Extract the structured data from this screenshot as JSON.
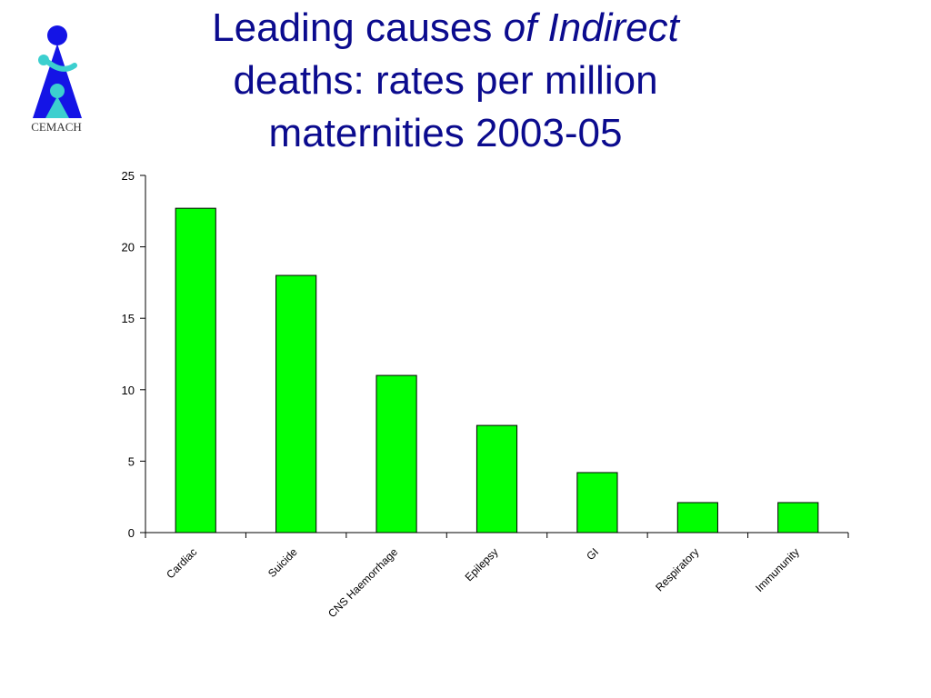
{
  "title": {
    "line1_normal": "Leading causes ",
    "line1_italic": "of Indirect",
    "line2": "deaths: rates per million",
    "line3": "maternities 2003-05"
  },
  "logo": {
    "text": "CEMACH",
    "colors": {
      "figure": "#1414e6",
      "accent": "#3ccfcf",
      "text": "#333333"
    }
  },
  "colors": {
    "title": "#0b0b8e",
    "bar_fill": "#00ff00",
    "bar_stroke": "#000000"
  },
  "chart_data": {
    "type": "bar",
    "title": "",
    "xlabel": "",
    "ylabel": "",
    "categories": [
      "Cardiac",
      "Suicide",
      "CNS Haemorrhage",
      "Epilepsy",
      "GI",
      "Respiratory",
      "Immununity"
    ],
    "values": [
      22.7,
      18.0,
      11.0,
      7.5,
      4.2,
      2.1,
      2.1
    ],
    "ylim": [
      0,
      25
    ],
    "yticks": [
      0,
      5,
      10,
      15,
      20,
      25
    ],
    "grid": false,
    "legend": "none"
  }
}
